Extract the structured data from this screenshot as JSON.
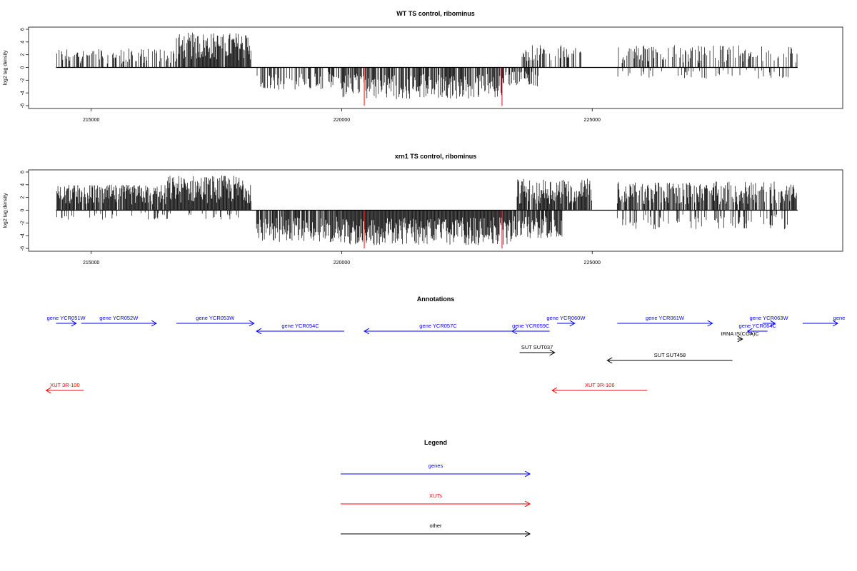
{
  "chart_data": [
    {
      "type": "bar",
      "title": "WT TS control, ribominus",
      "ylabel": "log2 tag density",
      "xlabel": "",
      "xlim": [
        213750,
        230000
      ],
      "ylim": [
        -6,
        6
      ],
      "x_ticks": [
        215000,
        220000,
        225000
      ],
      "x_tick_labels": [
        "215000",
        "220000",
        "225000"
      ],
      "y_ticks": [
        -6,
        -4,
        -2,
        0,
        2,
        4,
        6
      ],
      "y_tick_labels": [
        "-6",
        "-4",
        "-2",
        "0",
        "2",
        "4",
        "6"
      ],
      "series_color": "#000000",
      "highlight_color": "#ff0000",
      "highlights": [
        {
          "x": 220450,
          "y": -6
        },
        {
          "x": 223200,
          "y": -6
        }
      ],
      "segments": [
        {
          "from": 214300,
          "to": 216700,
          "sign": 1,
          "max": 3,
          "density": 0.45
        },
        {
          "from": 216700,
          "to": 218200,
          "sign": 1,
          "max": 5.5,
          "density": 0.95
        },
        {
          "from": 218300,
          "to": 220000,
          "sign": -1,
          "max": 3.5,
          "density": 0.5
        },
        {
          "from": 220000,
          "to": 223200,
          "sign": -1,
          "max": 5,
          "density": 0.75
        },
        {
          "from": 223200,
          "to": 224000,
          "sign": -1,
          "max": 3,
          "density": 0.6
        },
        {
          "from": 223600,
          "to": 224800,
          "sign": 1,
          "max": 3.5,
          "density": 0.5
        },
        {
          "from": 225500,
          "to": 229100,
          "sign": 1,
          "max": 3.5,
          "density": 0.35
        },
        {
          "from": 225500,
          "to": 229000,
          "sign": -1,
          "max": 1.8,
          "density": 0.12
        }
      ]
    },
    {
      "type": "bar",
      "title": "xrn1 TS control, ribominus",
      "ylabel": "log2 tag density",
      "xlabel": "",
      "xlim": [
        213750,
        230000
      ],
      "ylim": [
        -6,
        6
      ],
      "x_ticks": [
        215000,
        220000,
        225000
      ],
      "x_tick_labels": [
        "215000",
        "220000",
        "225000"
      ],
      "y_ticks": [
        -6,
        -4,
        -2,
        0,
        2,
        4,
        6
      ],
      "y_tick_labels": [
        "-6",
        "-4",
        "-2",
        "0",
        "2",
        "4",
        "6"
      ],
      "series_color": "#000000",
      "highlight_color": "#ff0000",
      "highlights": [
        {
          "x": 220450,
          "y": -6
        },
        {
          "x": 223200,
          "y": -6
        }
      ],
      "segments": [
        {
          "from": 214300,
          "to": 216500,
          "sign": 1,
          "max": 4,
          "density": 0.9
        },
        {
          "from": 216500,
          "to": 218200,
          "sign": 1,
          "max": 5.5,
          "density": 1.0
        },
        {
          "from": 214300,
          "to": 218200,
          "sign": -1,
          "max": 1.5,
          "density": 0.15
        },
        {
          "from": 218300,
          "to": 220000,
          "sign": -1,
          "max": 5,
          "density": 0.85
        },
        {
          "from": 220000,
          "to": 223400,
          "sign": -1,
          "max": 5.5,
          "density": 1.0
        },
        {
          "from": 223400,
          "to": 224400,
          "sign": -1,
          "max": 4.5,
          "density": 0.85
        },
        {
          "from": 223500,
          "to": 225000,
          "sign": 1,
          "max": 5,
          "density": 0.85
        },
        {
          "from": 225500,
          "to": 229100,
          "sign": 1,
          "max": 4.5,
          "density": 0.75
        },
        {
          "from": 225500,
          "to": 229000,
          "sign": -1,
          "max": 3,
          "density": 0.25
        }
      ]
    }
  ],
  "annotations": {
    "title": "Annotations",
    "features": [
      {
        "label": "gene YCR051W",
        "start": 214300,
        "end": 214700,
        "row": 0,
        "dir": "right",
        "color": "#0000ff"
      },
      {
        "label": "gene YCR052W",
        "start": 214800,
        "end": 216300,
        "row": 0,
        "dir": "right",
        "color": "#0000ff"
      },
      {
        "label": "gene YCR053W",
        "start": 216700,
        "end": 218250,
        "row": 0,
        "dir": "right",
        "color": "#0000ff"
      },
      {
        "label": "gene YCR054C",
        "start": 218300,
        "end": 220050,
        "row": 1,
        "dir": "left",
        "color": "#0000ff"
      },
      {
        "label": "gene YCR057C",
        "start": 220450,
        "end": 223400,
        "row": 1,
        "dir": "left",
        "color": "#0000ff"
      },
      {
        "label": "gene YCR059C",
        "start": 223400,
        "end": 224150,
        "row": 1,
        "dir": "left",
        "color": "#0000ff"
      },
      {
        "label": "gene YCR060W",
        "start": 224300,
        "end": 224650,
        "row": 0,
        "dir": "right",
        "color": "#0000ff"
      },
      {
        "label": "gene YCR061W",
        "start": 225500,
        "end": 227400,
        "row": 0,
        "dir": "right",
        "color": "#0000ff"
      },
      {
        "label": "gene YCR063W",
        "start": 228400,
        "end": 228650,
        "row": 0,
        "dir": "right",
        "color": "#0000ff"
      },
      {
        "label": "gene YCR064C",
        "start": 228100,
        "end": 228500,
        "row": 1,
        "dir": "left",
        "color": "#0000ff"
      },
      {
        "label": "gene",
        "start": 229200,
        "end": 229900,
        "row": 0,
        "dir": "right",
        "color": "#0000ff"
      },
      {
        "label": "tRNA tS(CGA)C",
        "start": 227900,
        "end": 228000,
        "row": 2,
        "dir": "right",
        "color": "#000000"
      },
      {
        "label": "SUT SUT037",
        "start": 223550,
        "end": 224250,
        "row": 3,
        "dir": "right",
        "color": "#000000"
      },
      {
        "label": "SUT SUT458",
        "start": 225300,
        "end": 227800,
        "row": 4,
        "dir": "left",
        "color": "#000000"
      },
      {
        "label": "XUT 3R-100",
        "start": 214100,
        "end": 214850,
        "row": 5,
        "dir": "left",
        "color": "#ff0000"
      },
      {
        "label": "XUT 3R-106",
        "start": 224200,
        "end": 226100,
        "row": 5,
        "dir": "left",
        "color": "#ff0000"
      }
    ]
  },
  "legend": {
    "title": "Legend",
    "items": [
      {
        "label": "genes",
        "color": "#0000ff"
      },
      {
        "label": "XUTs",
        "color": "#ff0000"
      },
      {
        "label": "other",
        "color": "#000000"
      }
    ]
  }
}
